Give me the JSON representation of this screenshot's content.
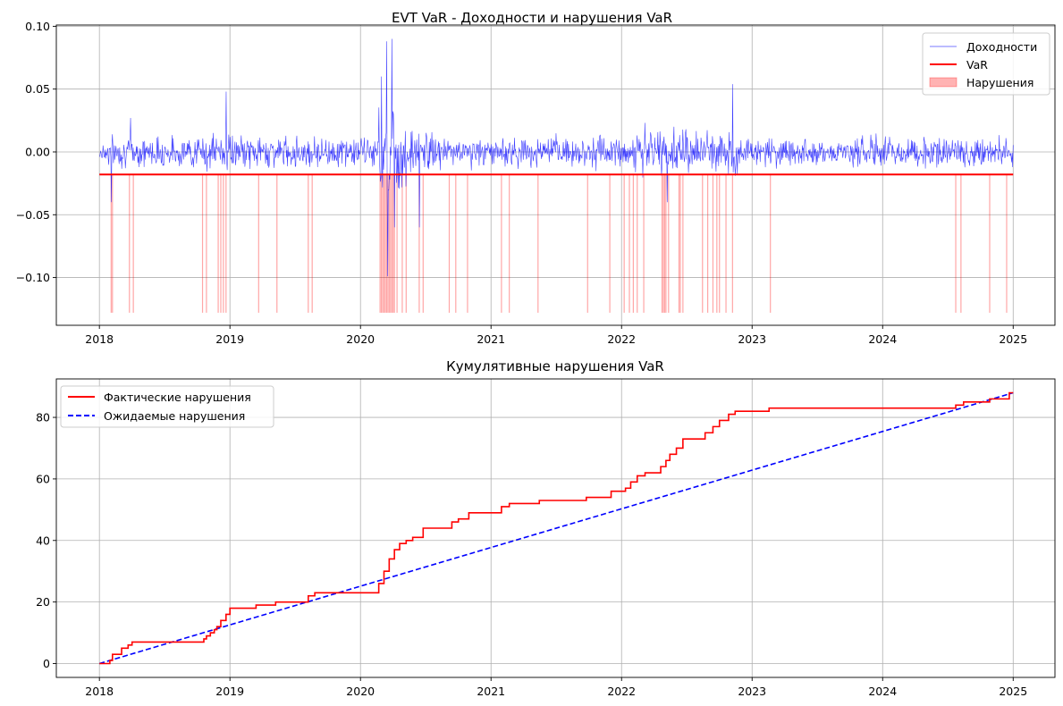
{
  "colors": {
    "returns": "#0000ff",
    "var": "#ff0000",
    "violations": "#ff0000",
    "actual": "#ff0000",
    "expected": "#0000ff",
    "grid": "#b0b0b0"
  },
  "chart_data": [
    {
      "type": "line",
      "title": "EVT VaR - Доходности и нарушения VaR",
      "xlabel": "",
      "ylabel": "",
      "xlim": [
        2017.67,
        2025.32
      ],
      "ylim": [
        -0.138,
        0.101
      ],
      "x_ticks": [
        "2018",
        "2019",
        "2020",
        "2021",
        "2022",
        "2023",
        "2024",
        "2025"
      ],
      "x_tick_values": [
        2018,
        2019,
        2020,
        2021,
        2022,
        2023,
        2024,
        2025
      ],
      "y_ticks": [
        "−0.10",
        "−0.05",
        "0.00",
        "0.05",
        "0.10"
      ],
      "y_tick_values": [
        -0.1,
        -0.05,
        0.0,
        0.05,
        0.1
      ],
      "grid": true,
      "legend_position": "top-right",
      "series": [
        {
          "name": "Доходности",
          "style": "thin-line",
          "x_range": [
            2018.0,
            2025.0
          ],
          "base_volatility": 0.008,
          "notes_points": [
            {
              "x": 2018.09,
              "y": -0.04
            },
            {
              "x": 2018.24,
              "y": 0.027
            },
            {
              "x": 2018.97,
              "y": 0.048
            },
            {
              "x": 2020.16,
              "y": 0.06
            },
            {
              "x": 2020.2,
              "y": 0.088
            },
            {
              "x": 2020.21,
              "y": -0.099
            },
            {
              "x": 2020.24,
              "y": 0.09
            },
            {
              "x": 2020.26,
              "y": -0.06
            },
            {
              "x": 2020.45,
              "y": -0.06
            },
            {
              "x": 2022.35,
              "y": -0.04
            },
            {
              "x": 2022.85,
              "y": 0.054
            }
          ]
        },
        {
          "name": "VaR",
          "style": "line",
          "value": -0.018,
          "x_range": [
            2018.0,
            2025.0
          ]
        },
        {
          "name": "Нарушения",
          "style": "fill-spans",
          "bottom": -0.128,
          "dates": [
            2018.09,
            2018.1,
            2018.23,
            2018.26,
            2018.79,
            2018.82,
            2018.91,
            2018.93,
            2018.95,
            2018.97,
            2019.22,
            2019.36,
            2019.6,
            2019.63,
            2020.15,
            2020.16,
            2020.17,
            2020.18,
            2020.19,
            2020.2,
            2020.21,
            2020.22,
            2020.23,
            2020.24,
            2020.25,
            2020.26,
            2020.28,
            2020.32,
            2020.35,
            2020.45,
            2020.48,
            2020.68,
            2020.73,
            2020.82,
            2021.08,
            2021.14,
            2021.36,
            2021.74,
            2021.91,
            2022.02,
            2022.06,
            2022.09,
            2022.12,
            2022.17,
            2022.31,
            2022.32,
            2022.33,
            2022.34,
            2022.36,
            2022.44,
            2022.45,
            2022.47,
            2022.62,
            2022.66,
            2022.7,
            2022.73,
            2022.75,
            2022.8,
            2022.85,
            2023.14,
            2024.56,
            2024.6,
            2024.82,
            2024.95
          ]
        }
      ]
    },
    {
      "type": "line",
      "title": "Кумулятивные нарушения VaR",
      "xlabel": "",
      "ylabel": "",
      "xlim": [
        2017.67,
        2025.32
      ],
      "ylim": [
        -4.5,
        92.5
      ],
      "x_ticks": [
        "2018",
        "2019",
        "2020",
        "2021",
        "2022",
        "2023",
        "2024",
        "2025"
      ],
      "x_tick_values": [
        2018,
        2019,
        2020,
        2021,
        2022,
        2023,
        2024,
        2025
      ],
      "y_ticks": [
        "0",
        "20",
        "40",
        "60",
        "80"
      ],
      "y_tick_values": [
        0,
        20,
        40,
        60,
        80
      ],
      "grid": true,
      "legend_position": "top-left",
      "series": [
        {
          "name": "Фактические нарушения",
          "style": "step",
          "x": [
            2018.0,
            2018.08,
            2018.1,
            2018.17,
            2018.22,
            2018.25,
            2018.8,
            2018.82,
            2018.85,
            2018.88,
            2018.9,
            2018.93,
            2018.97,
            2019.0,
            2019.2,
            2019.35,
            2019.6,
            2019.65,
            2020.14,
            2020.18,
            2020.22,
            2020.26,
            2020.3,
            2020.35,
            2020.4,
            2020.48,
            2020.7,
            2020.75,
            2020.83,
            2021.08,
            2021.14,
            2021.37,
            2021.73,
            2021.92,
            2022.03,
            2022.07,
            2022.12,
            2022.18,
            2022.3,
            2022.34,
            2022.37,
            2022.42,
            2022.47,
            2022.64,
            2022.7,
            2022.75,
            2022.82,
            2022.87,
            2023.13,
            2024.56,
            2024.62,
            2024.82,
            2024.97
          ],
          "values": [
            0,
            1,
            3,
            5,
            6,
            7,
            8,
            9,
            10,
            11,
            12,
            14,
            16,
            18,
            19,
            20,
            22,
            23,
            26,
            30,
            34,
            37,
            39,
            40,
            41,
            44,
            46,
            47,
            49,
            51,
            52,
            53,
            54,
            56,
            57,
            59,
            61,
            62,
            64,
            66,
            68,
            70,
            73,
            75,
            77,
            79,
            81,
            82,
            83,
            84,
            85,
            86,
            88
          ]
        },
        {
          "name": "Ожидаемые нарушения",
          "style": "dashed",
          "x": [
            2018.0,
            2025.0
          ],
          "values": [
            0,
            88
          ]
        }
      ]
    }
  ]
}
